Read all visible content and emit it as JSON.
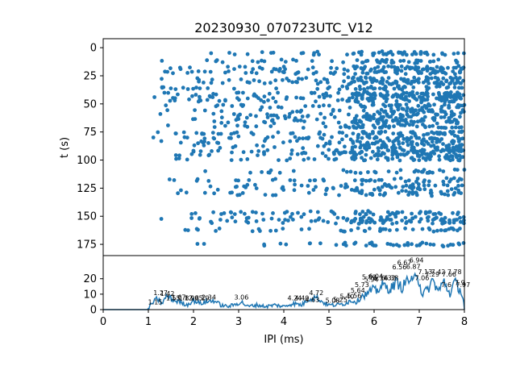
{
  "chart_data": [
    {
      "type": "scatter",
      "title": "20230930_070723UTC_V12",
      "xlabel": "",
      "ylabel": "t (s)",
      "xlim": [
        0,
        8
      ],
      "ylim": [
        185,
        -8
      ],
      "y_ticks": [
        "0",
        "25",
        "50",
        "75",
        "100",
        "125",
        "150",
        "175"
      ],
      "y_tick_values": [
        0,
        25,
        50,
        75,
        100,
        125,
        150,
        175
      ],
      "color": "#1f77b4",
      "rows": [
        {
          "t": 5,
          "start": 1.05,
          "density": 0.55
        },
        {
          "t": 12,
          "start": 1.1,
          "density": 0.5
        },
        {
          "t": 18,
          "start": 1.05,
          "density": 0.7
        },
        {
          "t": 22,
          "start": 1.1,
          "density": 0.65
        },
        {
          "t": 28,
          "start": 1.15,
          "density": 0.6
        },
        {
          "t": 31,
          "start": 1.1,
          "density": 0.65
        },
        {
          "t": 36,
          "start": 1.05,
          "density": 0.55
        },
        {
          "t": 41,
          "start": 1.05,
          "density": 0.75
        },
        {
          "t": 44,
          "start": 1.05,
          "density": 0.7
        },
        {
          "t": 47,
          "start": 1.1,
          "density": 0.65
        },
        {
          "t": 52,
          "start": 1.1,
          "density": 0.55
        },
        {
          "t": 56,
          "start": 1.1,
          "density": 0.5
        },
        {
          "t": 60,
          "start": 1.15,
          "density": 0.5
        },
        {
          "t": 63,
          "start": 1.15,
          "density": 0.55
        },
        {
          "t": 66,
          "start": 1.1,
          "density": 0.55
        },
        {
          "t": 70,
          "start": 1.1,
          "density": 0.5
        },
        {
          "t": 76,
          "start": 1.15,
          "density": 0.65
        },
        {
          "t": 80,
          "start": 1.1,
          "density": 0.6
        },
        {
          "t": 84,
          "start": 1.2,
          "density": 0.55
        },
        {
          "t": 88,
          "start": 1.15,
          "density": 0.55
        },
        {
          "t": 92,
          "start": 1.05,
          "density": 0.75
        },
        {
          "t": 95,
          "start": 1.1,
          "density": 0.6
        },
        {
          "t": 99,
          "start": 1.3,
          "density": 0.55
        },
        {
          "t": 110,
          "start": 1.25,
          "density": 0.35
        },
        {
          "t": 118,
          "start": 1.2,
          "density": 0.45
        },
        {
          "t": 123,
          "start": 1.25,
          "density": 0.4
        },
        {
          "t": 126,
          "start": 1.3,
          "density": 0.35
        },
        {
          "t": 130,
          "start": 1.0,
          "density": 0.45
        },
        {
          "t": 147,
          "start": 1.2,
          "density": 0.55
        },
        {
          "t": 152,
          "start": 1.2,
          "density": 0.55
        },
        {
          "t": 155,
          "start": 1.25,
          "density": 0.55
        },
        {
          "t": 162,
          "start": 1.05,
          "density": 0.45
        },
        {
          "t": 175,
          "start": 1.15,
          "density": 0.45
        }
      ]
    },
    {
      "type": "line",
      "title": "",
      "xlabel": "IPI (ms)",
      "ylabel": "",
      "xlim": [
        0,
        8
      ],
      "ylim": [
        0,
        35
      ],
      "x_ticks": [
        "0",
        "1",
        "2",
        "3",
        "4",
        "5",
        "6",
        "7",
        "8"
      ],
      "x_tick_values": [
        0,
        1,
        2,
        3,
        4,
        5,
        6,
        7,
        8
      ],
      "y_ticks": [
        "0",
        "10",
        "20"
      ],
      "y_tick_values": [
        0,
        10,
        20
      ],
      "color": "#1f77b4",
      "x": [
        0.0,
        0.5,
        0.98,
        1.05,
        1.12,
        1.2,
        1.3,
        1.42,
        1.55,
        1.7,
        1.85,
        2.0,
        2.15,
        2.3,
        2.45,
        2.6,
        2.75,
        2.9,
        3.06,
        3.2,
        3.4,
        3.6,
        3.8,
        4.0,
        4.2,
        4.4,
        4.55,
        4.72,
        4.85,
        5.0,
        5.2,
        5.35,
        5.5,
        5.62,
        5.72,
        5.85,
        5.95,
        6.05,
        6.2,
        6.35,
        6.5,
        6.62,
        6.75,
        6.87,
        6.94,
        7.06,
        7.19,
        7.3,
        7.42,
        7.55,
        7.68,
        7.78,
        7.9,
        7.97,
        8.0
      ],
      "values": [
        0,
        0,
        0,
        3,
        5,
        7,
        4,
        9,
        6,
        5,
        3,
        6,
        4,
        5,
        6,
        3,
        2,
        3,
        5,
        2,
        3,
        2,
        3,
        2,
        4,
        3,
        7,
        8,
        5,
        3,
        3,
        4,
        6,
        5,
        9,
        10,
        13,
        12,
        16,
        13,
        18,
        14,
        20,
        17,
        26,
        10,
        13,
        19,
        12,
        18,
        10,
        18,
        13,
        8,
        0
      ],
      "peak_labels": [
        {
          "x": 1.15,
          "y": 3.5,
          "text": "1.15"
        },
        {
          "x": 1.27,
          "y": 9.5,
          "text": "1.27"
        },
        {
          "x": 1.42,
          "y": 9.0,
          "text": "1.42"
        },
        {
          "x": 1.55,
          "y": 6.0,
          "text": "1.55"
        },
        {
          "x": 1.67,
          "y": 6.5,
          "text": "1.67"
        },
        {
          "x": 1.83,
          "y": 6.0,
          "text": "1.83"
        },
        {
          "x": 1.96,
          "y": 6.0,
          "text": "1.96"
        },
        {
          "x": 2.05,
          "y": 6.0,
          "text": "2.05"
        },
        {
          "x": 2.19,
          "y": 6.0,
          "text": "2.19"
        },
        {
          "x": 2.34,
          "y": 6.5,
          "text": "2.34"
        },
        {
          "x": 3.06,
          "y": 6.5,
          "text": "3.06"
        },
        {
          "x": 4.24,
          "y": 6.0,
          "text": "4.24"
        },
        {
          "x": 4.4,
          "y": 6.0,
          "text": "4.40"
        },
        {
          "x": 4.63,
          "y": 5.0,
          "text": "4.63"
        },
        {
          "x": 4.72,
          "y": 9.5,
          "text": "4.72"
        },
        {
          "x": 5.08,
          "y": 4.5,
          "text": "5.08"
        },
        {
          "x": 5.25,
          "y": 5.0,
          "text": "5.25"
        },
        {
          "x": 5.4,
          "y": 7.0,
          "text": "5.40"
        },
        {
          "x": 5.56,
          "y": 7.5,
          "text": "5.56"
        },
        {
          "x": 5.64,
          "y": 11.0,
          "text": "5.64"
        },
        {
          "x": 5.73,
          "y": 14.5,
          "text": "5.73"
        },
        {
          "x": 5.89,
          "y": 19.5,
          "text": "5.89"
        },
        {
          "x": 5.94,
          "y": 18.0,
          "text": "5.94"
        },
        {
          "x": 6.04,
          "y": 20.0,
          "text": "6.04"
        },
        {
          "x": 6.14,
          "y": 19.0,
          "text": "6.14"
        },
        {
          "x": 6.32,
          "y": 19.0,
          "text": "6.32"
        },
        {
          "x": 6.38,
          "y": 19.0,
          "text": "6.38"
        },
        {
          "x": 6.56,
          "y": 26.0,
          "text": "6.56"
        },
        {
          "x": 6.67,
          "y": 29.0,
          "text": "6.67"
        },
        {
          "x": 6.87,
          "y": 26.5,
          "text": "6.87"
        },
        {
          "x": 6.94,
          "y": 30.5,
          "text": "6.94"
        },
        {
          "x": 7.06,
          "y": 19.0,
          "text": "7.06"
        },
        {
          "x": 7.13,
          "y": 23.0,
          "text": "7.13"
        },
        {
          "x": 7.29,
          "y": 21.5,
          "text": "7.29"
        },
        {
          "x": 7.42,
          "y": 23.0,
          "text": "7.42"
        },
        {
          "x": 7.6,
          "y": 14.5,
          "text": "7.6"
        },
        {
          "x": 7.66,
          "y": 21.5,
          "text": "7.66"
        },
        {
          "x": 7.78,
          "y": 23.0,
          "text": "7.78"
        },
        {
          "x": 7.9,
          "y": 16.0,
          "text": "7.9"
        },
        {
          "x": 7.97,
          "y": 14.5,
          "text": "7.97"
        }
      ]
    }
  ]
}
